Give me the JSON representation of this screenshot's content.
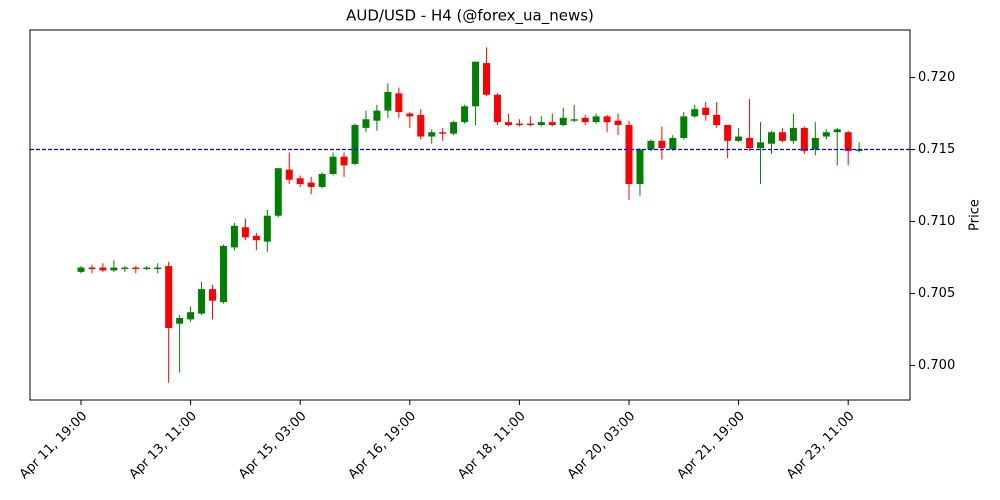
{
  "chart_data": {
    "type": "candlestick",
    "title": "AUD/USD - H4 (@forex_ua_news)",
    "y_label": "Price",
    "y_axis_side": "right",
    "up_color": "#008000",
    "down_color": "#ff0000",
    "categories": [
      "Apr 11, 19:00",
      null,
      null,
      null,
      null,
      null,
      null,
      null,
      null,
      null,
      "Apr 13, 11:00",
      null,
      null,
      null,
      null,
      null,
      null,
      null,
      null,
      null,
      "Apr 15, 03:00",
      null,
      null,
      null,
      null,
      null,
      null,
      null,
      null,
      null,
      "Apr 16, 19:00",
      null,
      null,
      null,
      null,
      null,
      null,
      null,
      null,
      null,
      "Apr 18, 11:00",
      null,
      null,
      null,
      null,
      null,
      null,
      null,
      null,
      null,
      "Apr 20, 03:00",
      null,
      null,
      null,
      null,
      null,
      null,
      null,
      null,
      null,
      "Apr 21, 19:00",
      null,
      null,
      null,
      null,
      null,
      null,
      null,
      null,
      null,
      "Apr 23, 11:00",
      null
    ],
    "open": [
      0.7065,
      0.7068,
      0.7068,
      0.7066,
      0.7067,
      0.7068,
      0.7067,
      0.7067,
      0.7069,
      0.7029,
      0.7032,
      0.7036,
      0.7053,
      0.7044,
      0.7082,
      0.7096,
      0.709,
      0.7086,
      0.7104,
      0.7136,
      0.713,
      0.7127,
      0.7124,
      0.7133,
      0.7145,
      0.714,
      0.7165,
      0.717,
      0.7177,
      0.7189,
      0.7175,
      0.7174,
      0.7159,
      0.7162,
      0.7161,
      0.7169,
      0.718,
      0.721,
      0.7188,
      0.7169,
      0.7168,
      0.7168,
      0.7167,
      0.7169,
      0.7167,
      0.717,
      0.7172,
      0.7169,
      0.7173,
      0.717,
      0.7167,
      0.7126,
      0.715,
      0.7156,
      0.715,
      0.7158,
      0.7173,
      0.7179,
      0.7174,
      0.7167,
      0.7156,
      0.7158,
      0.7151,
      0.7154,
      0.7162,
      0.7156,
      0.7165,
      0.715,
      0.7159,
      0.7162,
      0.7162,
      0.7149
    ],
    "high": [
      0.7069,
      0.707,
      0.7071,
      0.7073,
      0.7069,
      0.7069,
      0.7069,
      0.7071,
      0.7072,
      0.7035,
      0.7041,
      0.7058,
      0.7056,
      0.7084,
      0.7099,
      0.7102,
      0.7092,
      0.7108,
      0.7137,
      0.7148,
      0.7132,
      0.7131,
      0.7134,
      0.7148,
      0.7148,
      0.7168,
      0.7177,
      0.7181,
      0.7196,
      0.7193,
      0.7176,
      0.7178,
      0.7164,
      0.7165,
      0.717,
      0.7181,
      0.7211,
      0.7221,
      0.7189,
      0.7175,
      0.7171,
      0.7173,
      0.7173,
      0.7175,
      0.7179,
      0.7181,
      0.7174,
      0.7175,
      0.7174,
      0.7175,
      0.717,
      0.7151,
      0.7157,
      0.7166,
      0.716,
      0.7176,
      0.7181,
      0.7183,
      0.7183,
      0.7167,
      0.7165,
      0.7185,
      0.7169,
      0.7163,
      0.7165,
      0.7175,
      0.7166,
      0.7169,
      0.7164,
      0.7165,
      0.7163,
      0.7155
    ],
    "low": [
      0.7064,
      0.7064,
      0.7065,
      0.7065,
      0.7065,
      0.7064,
      0.7066,
      0.7064,
      0.6988,
      0.6995,
      0.703,
      0.7035,
      0.7032,
      0.7043,
      0.708,
      0.7087,
      0.708,
      0.7079,
      0.7103,
      0.7126,
      0.7124,
      0.7119,
      0.7123,
      0.7132,
      0.7131,
      0.7139,
      0.7162,
      0.7163,
      0.7172,
      0.7172,
      0.7165,
      0.7157,
      0.7154,
      0.7156,
      0.716,
      0.7168,
      0.7167,
      0.7187,
      0.7167,
      0.7166,
      0.7166,
      0.7166,
      0.7166,
      0.7166,
      0.7166,
      0.7169,
      0.7167,
      0.7168,
      0.7162,
      0.716,
      0.7115,
      0.7118,
      0.7149,
      0.7143,
      0.7149,
      0.7157,
      0.7172,
      0.717,
      0.7165,
      0.7144,
      0.7155,
      0.7149,
      0.7126,
      0.7147,
      0.7155,
      0.7154,
      0.7147,
      0.7146,
      0.7157,
      0.7139,
      0.7139,
      0.7148
    ],
    "close": [
      0.7068,
      0.7067,
      0.7066,
      0.7068,
      0.7068,
      0.7067,
      0.7068,
      0.7068,
      0.7026,
      0.7033,
      0.7037,
      0.7053,
      0.7045,
      0.7083,
      0.7097,
      0.7089,
      0.7087,
      0.7104,
      0.7137,
      0.7129,
      0.7126,
      0.7124,
      0.7133,
      0.7145,
      0.7139,
      0.7167,
      0.7171,
      0.7177,
      0.719,
      0.7176,
      0.7173,
      0.7159,
      0.7162,
      0.7161,
      0.7169,
      0.718,
      0.7211,
      0.7188,
      0.7169,
      0.7167,
      0.7167,
      0.7167,
      0.7169,
      0.7167,
      0.7172,
      0.7171,
      0.7169,
      0.7173,
      0.7169,
      0.7167,
      0.7126,
      0.715,
      0.7156,
      0.7151,
      0.7158,
      0.7173,
      0.7178,
      0.7174,
      0.7167,
      0.7156,
      0.7159,
      0.7151,
      0.7155,
      0.7162,
      0.7156,
      0.7165,
      0.7149,
      0.7158,
      0.7162,
      0.7164,
      0.7149,
      0.715
    ],
    "ylim": [
      0.6976,
      0.7233
    ],
    "yticks": [
      {
        "value": 0.7,
        "label": "0.700"
      },
      {
        "value": 0.705,
        "label": "0.705"
      },
      {
        "value": 0.71,
        "label": "0.710"
      },
      {
        "value": 0.715,
        "label": "0.715"
      },
      {
        "value": 0.72,
        "label": "0.720"
      }
    ],
    "hline": {
      "value": 0.715,
      "color": "#0000ff",
      "style": "dashed"
    }
  }
}
